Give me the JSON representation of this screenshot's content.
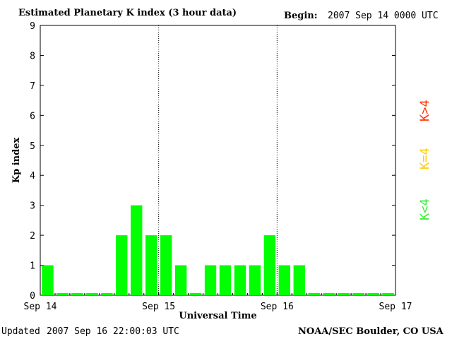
{
  "header": {
    "title": "Estimated Planetary K index (3 hour data)",
    "begin_label": "Begin:",
    "begin_value": "2007 Sep 14 0000 UTC"
  },
  "footer": {
    "updated_label": "Updated",
    "updated_value": "2007 Sep 16 22:00:03 UTC",
    "source": "NOAA/SEC Boulder, CO USA"
  },
  "legend": {
    "items": [
      {
        "label": "K>4",
        "color": "#ff3300"
      },
      {
        "label": "K=4",
        "color": "#ffcc00"
      },
      {
        "label": "K<4",
        "color": "#33ee33"
      }
    ]
  },
  "chart_data": {
    "type": "bar",
    "title": "Estimated Planetary K index (3 hour data)",
    "xlabel": "Universal Time",
    "ylabel": "Kp index",
    "ylim": [
      0,
      9
    ],
    "yticks": [
      "0",
      "1",
      "2",
      "3",
      "4",
      "5",
      "6",
      "7",
      "8",
      "9"
    ],
    "xticks": [
      "Sep 14",
      "Sep 15",
      "Sep 16",
      "Sep 17"
    ],
    "bar_color": "#00ff00",
    "day_separators": [
      "Sep 15",
      "Sep 16"
    ],
    "values": [
      1,
      0,
      0,
      0,
      0,
      2,
      3,
      2,
      2,
      1,
      0,
      1,
      1,
      1,
      1,
      2,
      1,
      1,
      0,
      0,
      0,
      0,
      0,
      0
    ]
  }
}
